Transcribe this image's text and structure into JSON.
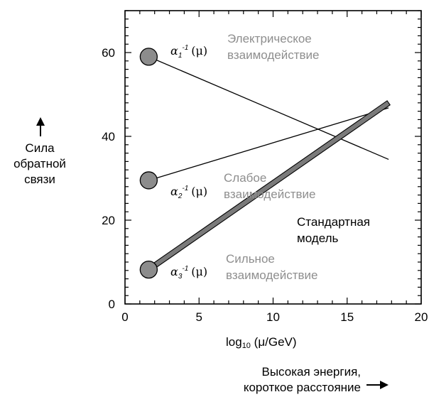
{
  "chart_data": {
    "type": "line",
    "xlabel": "log",
    "xlabel_sub": "10",
    "xlabel_tail": " (μ/GeV)",
    "ylabel_lines": [
      "Сила",
      "обратной",
      "связи"
    ],
    "xdesc_lines": [
      "Высокая энергия,",
      "короткое расстояние"
    ],
    "xlim": [
      0,
      20
    ],
    "ylim": [
      0,
      70
    ],
    "xticks": [
      0,
      5,
      10,
      15,
      20
    ],
    "yticks": [
      0,
      20,
      40,
      60
    ],
    "series": [
      {
        "name": "Электрическое взаимодействие",
        "name_lines": [
          "Электрическое",
          "взаимодействие"
        ],
        "symbol": "α",
        "symbol_sub": "1",
        "symbol_sup": "-1",
        "symbol_arg": "(μ)",
        "x": [
          1.6,
          17.8
        ],
        "y": [
          59.0,
          34.5
        ],
        "style": "thin"
      },
      {
        "name": "Слабое взаимодействие",
        "name_lines": [
          "Слабое",
          "взаимодействие"
        ],
        "symbol": "α",
        "symbol_sub": "2",
        "symbol_sup": "-1",
        "symbol_arg": "(μ)",
        "x": [
          1.6,
          17.8
        ],
        "y": [
          29.5,
          46.8
        ],
        "style": "thin"
      },
      {
        "name": "Сильное взаимодействие",
        "name_lines": [
          "Сильное",
          "взаимодействие"
        ],
        "symbol": "α",
        "symbol_sub": "3",
        "symbol_sup": "-1",
        "symbol_arg": "(μ)",
        "x": [
          1.6,
          17.8
        ],
        "y": [
          8.2,
          48.0
        ],
        "style": "band"
      }
    ],
    "annotation_lines": [
      "Стандартная",
      "модель"
    ],
    "colors": {
      "marker_fill": "#8c8c8c",
      "label_gray": "#8e8e8e",
      "band_fill": "#7a7a7a"
    }
  }
}
